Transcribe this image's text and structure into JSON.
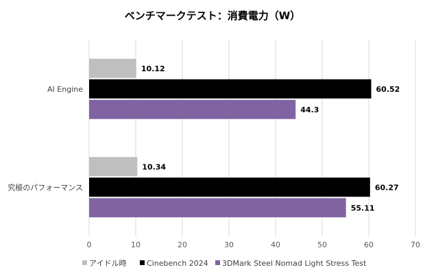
{
  "chart_data": {
    "type": "bar",
    "orientation": "horizontal",
    "title": "ベンチマークテスト：消費電力（W）",
    "categories": [
      "AI Engine",
      "究極のパフォーマンス"
    ],
    "series": [
      {
        "name": "アイドル時",
        "color": "#bfbfbf",
        "values": [
          10.12,
          10.34
        ],
        "labels": [
          "10.12",
          "10.34"
        ]
      },
      {
        "name": "Cinebench 2024",
        "color": "#000000",
        "values": [
          60.52,
          60.27
        ],
        "labels": [
          "60.52",
          "60.27"
        ]
      },
      {
        "name": "3DMark Steel Nomad Light Stress Test",
        "color": "#8064a2",
        "values": [
          44.3,
          55.11
        ],
        "labels": [
          "44.3",
          "55.11"
        ]
      }
    ],
    "xlim": [
      0,
      70
    ],
    "xticks": [
      "0",
      "10",
      "20",
      "30",
      "40",
      "50",
      "60",
      "70"
    ],
    "grid": true,
    "legend": "bottom",
    "xlabel": "",
    "ylabel": ""
  }
}
